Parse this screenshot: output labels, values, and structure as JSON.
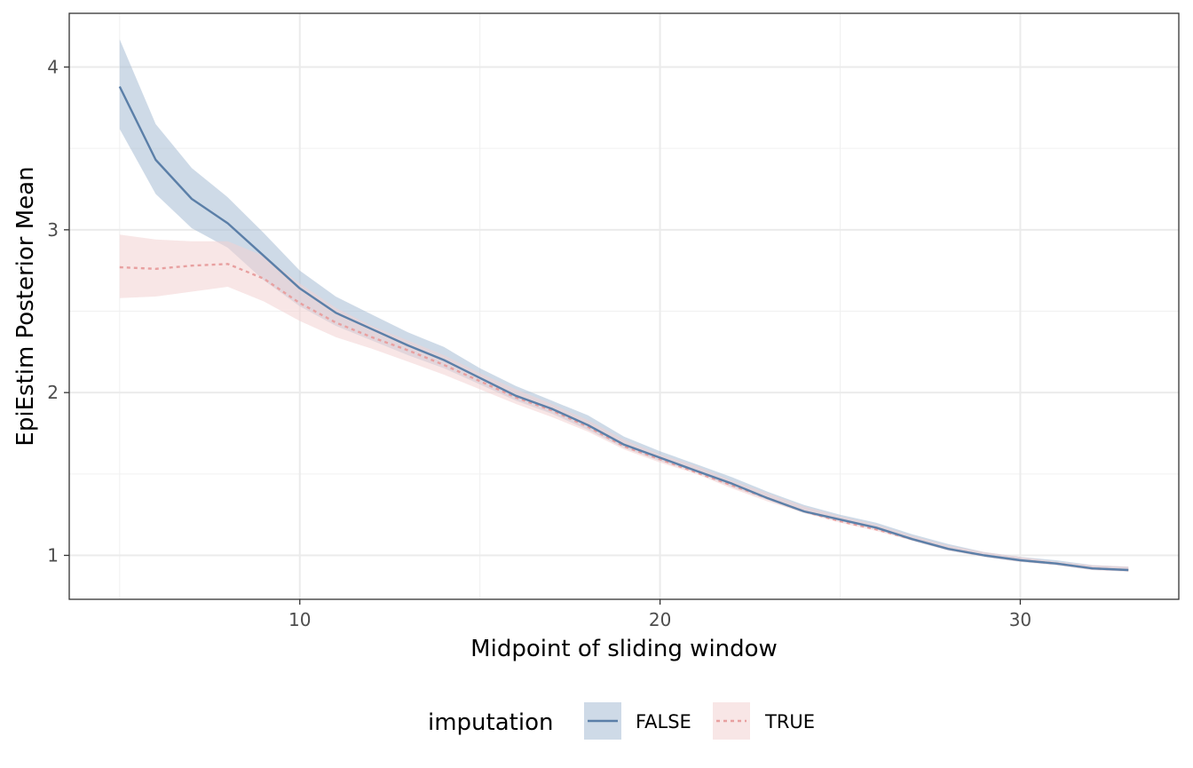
{
  "chart_data": {
    "type": "line",
    "title": "",
    "xlabel": "Midpoint of sliding window",
    "ylabel": "EpiEstim Posterior Mean",
    "xlim": [
      3.6,
      34.4
    ],
    "ylim": [
      0.73,
      4.33
    ],
    "x_ticks": [
      10,
      20,
      30
    ],
    "x_tick_labels": [
      "10",
      "20",
      "30"
    ],
    "y_ticks": [
      1,
      2,
      3,
      4
    ],
    "y_tick_labels": [
      "1",
      "2",
      "3",
      "4"
    ],
    "grid": true,
    "legend": {
      "title": "imputation",
      "position": "bottom"
    },
    "series": [
      {
        "name": "FALSE",
        "color": "#5b7fa8",
        "fill": "#a6bcd4",
        "linetype": "solid",
        "x": [
          5,
          6,
          7,
          8,
          9,
          10,
          11,
          12,
          13,
          14,
          15,
          16,
          17,
          18,
          19,
          20,
          21,
          22,
          23,
          24,
          25,
          26,
          27,
          28,
          29,
          30,
          31,
          32,
          33
        ],
        "y": [
          3.88,
          3.43,
          3.19,
          3.04,
          2.84,
          2.64,
          2.49,
          2.39,
          2.29,
          2.2,
          2.09,
          1.98,
          1.9,
          1.8,
          1.68,
          1.6,
          1.52,
          1.44,
          1.35,
          1.27,
          1.22,
          1.17,
          1.1,
          1.04,
          1.0,
          0.97,
          0.95,
          0.92,
          0.91
        ],
        "lower": [
          3.62,
          3.22,
          3.01,
          2.89,
          2.69,
          2.53,
          2.41,
          2.32,
          2.23,
          2.15,
          2.05,
          1.95,
          1.87,
          1.77,
          1.66,
          1.58,
          1.51,
          1.42,
          1.34,
          1.26,
          1.21,
          1.16,
          1.09,
          1.03,
          0.99,
          0.96,
          0.94,
          0.91,
          0.9
        ],
        "upper": [
          4.17,
          3.65,
          3.38,
          3.2,
          2.98,
          2.75,
          2.59,
          2.48,
          2.37,
          2.28,
          2.15,
          2.04,
          1.95,
          1.86,
          1.73,
          1.64,
          1.56,
          1.48,
          1.39,
          1.31,
          1.25,
          1.2,
          1.13,
          1.07,
          1.02,
          0.99,
          0.97,
          0.94,
          0.93
        ]
      },
      {
        "name": "TRUE",
        "color": "#e8a0a0",
        "fill": "#f3d2d2",
        "linetype": "dotted",
        "x": [
          5,
          6,
          7,
          8,
          9,
          10,
          11,
          12,
          13,
          14,
          15,
          16,
          17,
          18,
          19,
          20,
          21,
          22,
          23,
          24,
          25,
          26,
          27,
          28,
          29,
          30,
          31,
          32,
          33
        ],
        "y": [
          2.77,
          2.76,
          2.78,
          2.79,
          2.7,
          2.55,
          2.43,
          2.34,
          2.26,
          2.17,
          2.07,
          1.97,
          1.89,
          1.79,
          1.67,
          1.59,
          1.51,
          1.43,
          1.35,
          1.27,
          1.21,
          1.16,
          1.1,
          1.04,
          1.0,
          0.97,
          0.95,
          0.92,
          0.91
        ],
        "lower": [
          2.58,
          2.59,
          2.62,
          2.65,
          2.56,
          2.44,
          2.34,
          2.27,
          2.19,
          2.11,
          2.02,
          1.93,
          1.85,
          1.76,
          1.65,
          1.57,
          1.5,
          1.41,
          1.33,
          1.26,
          1.2,
          1.15,
          1.09,
          1.03,
          0.99,
          0.96,
          0.94,
          0.91,
          0.9
        ],
        "upper": [
          2.97,
          2.94,
          2.93,
          2.93,
          2.84,
          2.67,
          2.52,
          2.41,
          2.32,
          2.23,
          2.12,
          2.02,
          1.93,
          1.83,
          1.71,
          1.62,
          1.55,
          1.46,
          1.38,
          1.3,
          1.24,
          1.19,
          1.12,
          1.06,
          1.02,
          0.99,
          0.96,
          0.94,
          0.93
        ]
      }
    ]
  }
}
